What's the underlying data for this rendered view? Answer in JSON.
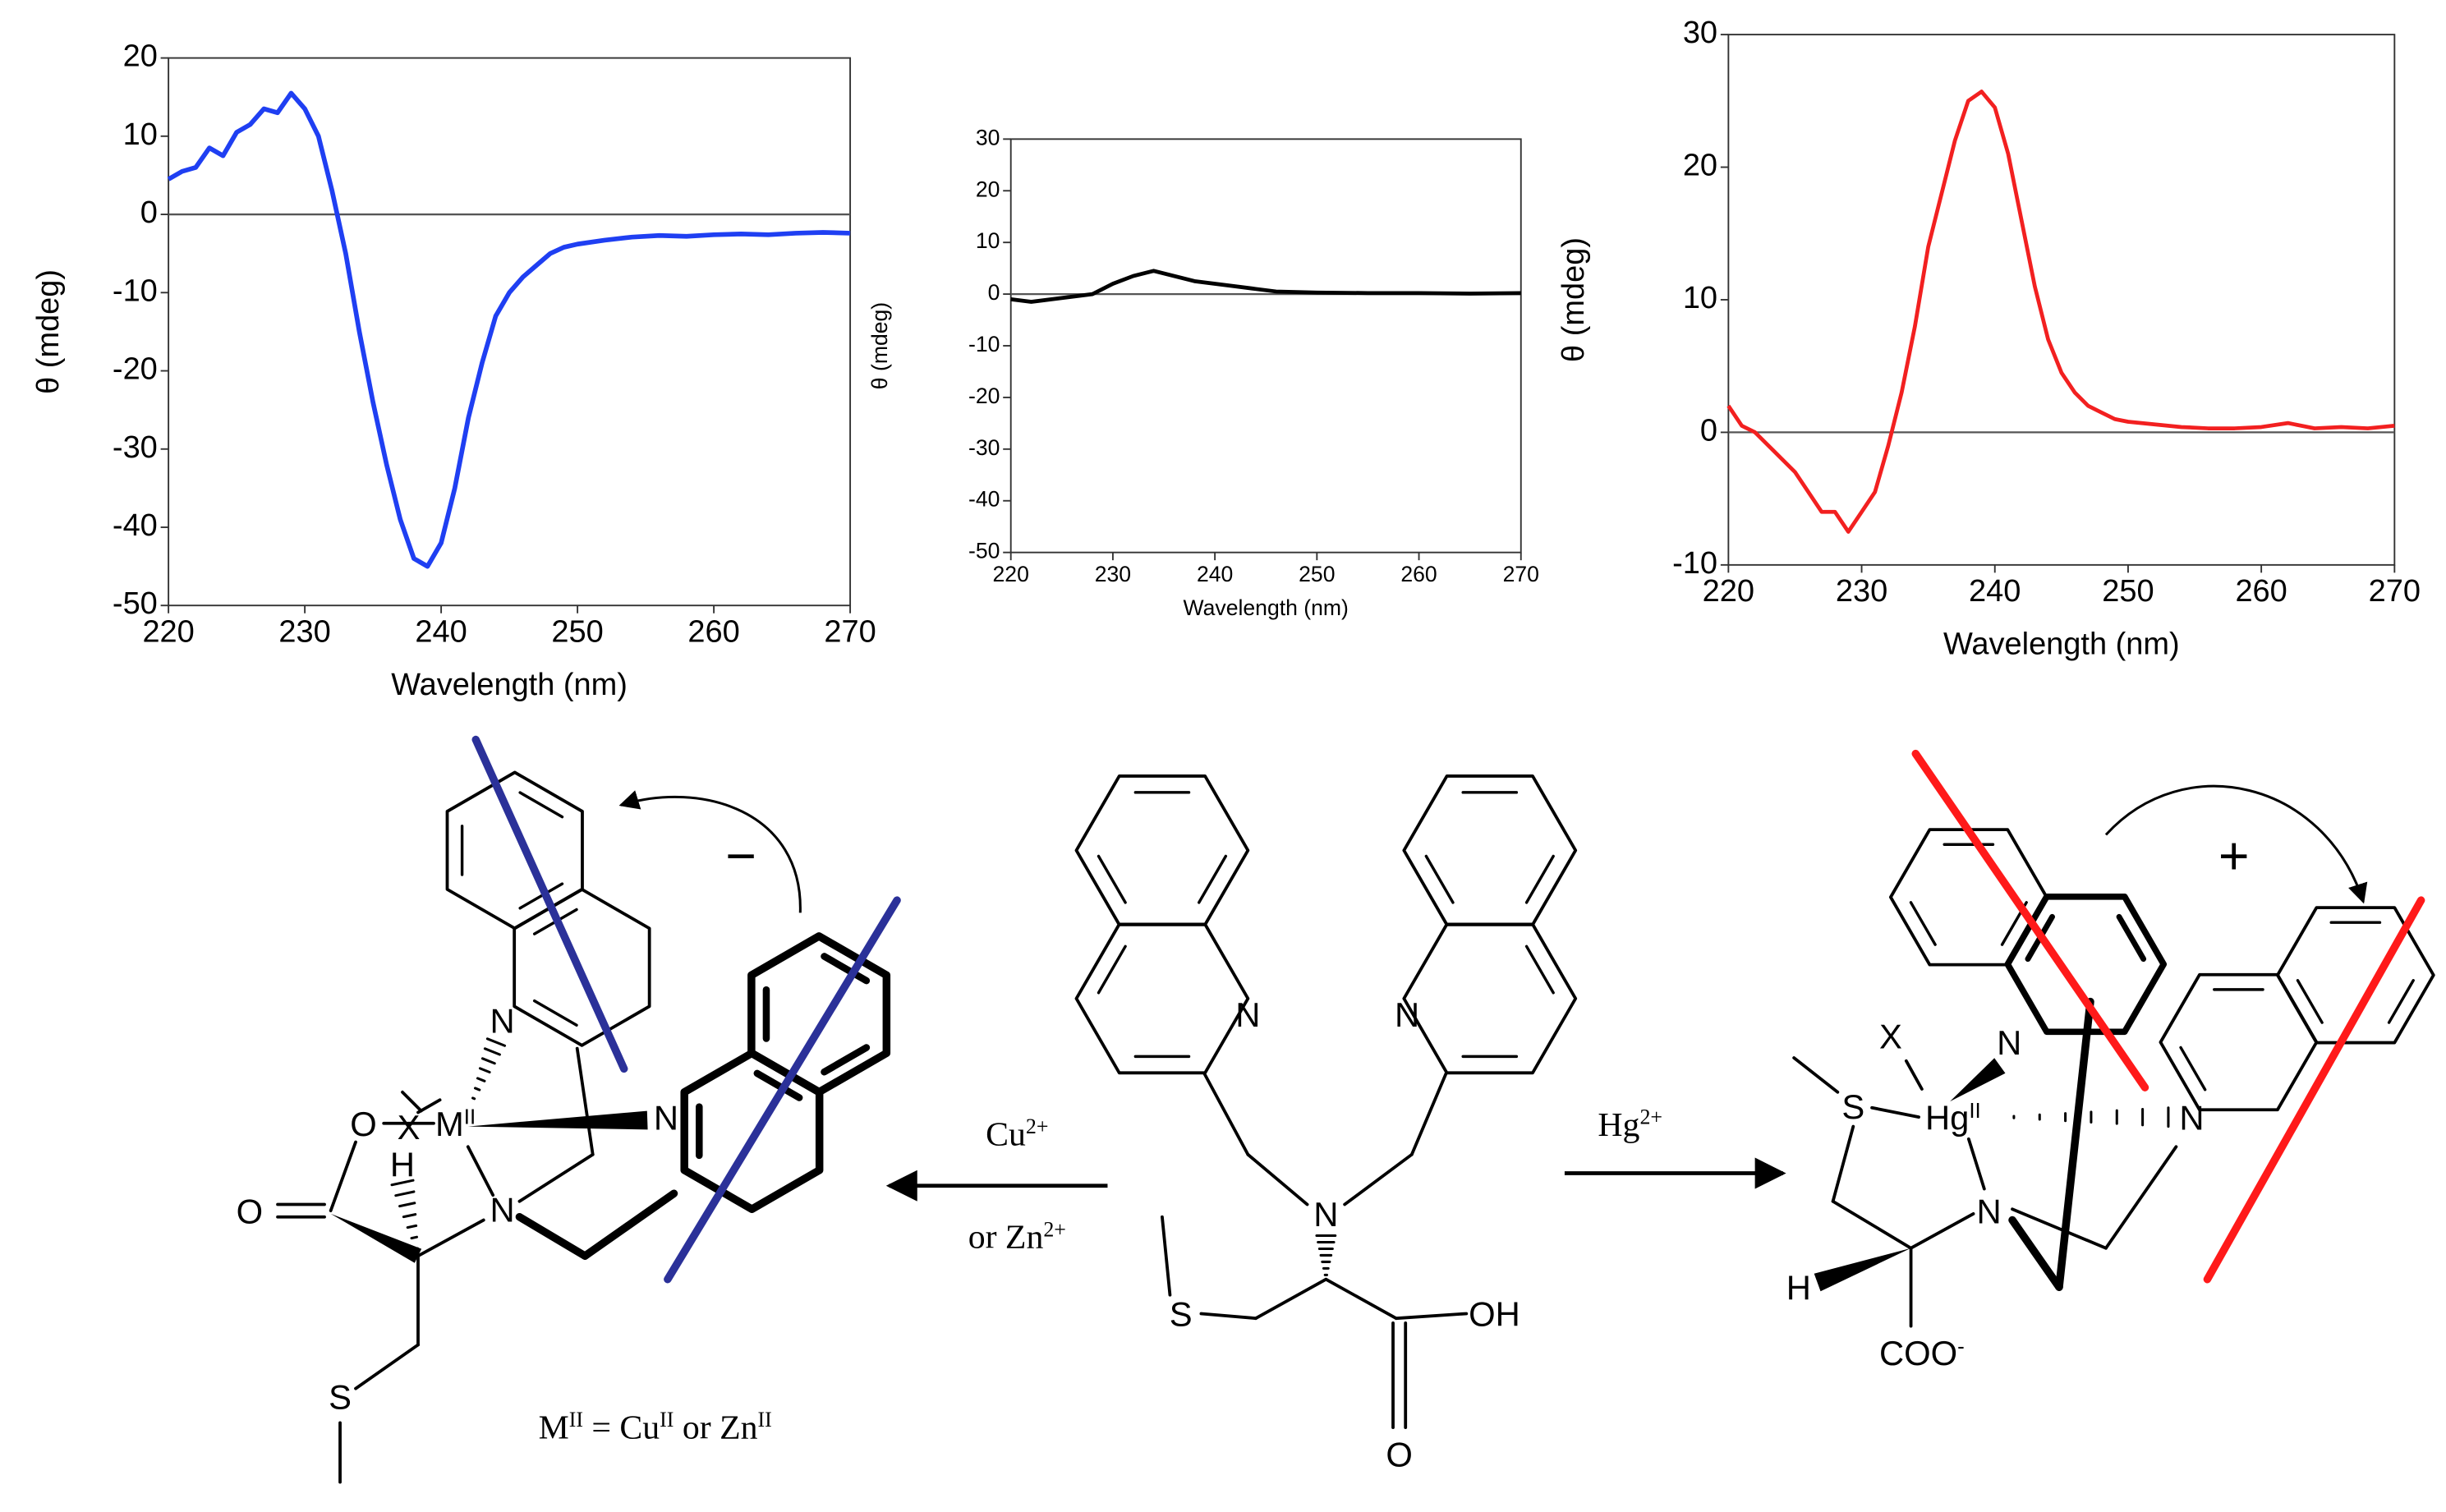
{
  "chart_data": [
    {
      "type": "line",
      "x_label": "Wavelength (nm)",
      "y_label": "θ (mdeg)",
      "xlim": [
        220,
        270
      ],
      "xticks": [
        220,
        230,
        240,
        250,
        260,
        270
      ],
      "ylim": [
        -50,
        20
      ],
      "yticks": [
        -50,
        -40,
        -30,
        -20,
        -10,
        0,
        10,
        20
      ],
      "hlines": [
        0
      ],
      "color": "#1f3ff2",
      "x": [
        220,
        221,
        222,
        223,
        224,
        225,
        226,
        227,
        228,
        229,
        230,
        231,
        232,
        233,
        234,
        235,
        236,
        237,
        238,
        239,
        240,
        241,
        242,
        243,
        244,
        245,
        246,
        247,
        248,
        249,
        250,
        252,
        254,
        256,
        258,
        260,
        262,
        264,
        266,
        268,
        270
      ],
      "values": [
        4.5,
        5.5,
        6,
        8.5,
        7.5,
        10.5,
        11.5,
        13.5,
        13,
        15.5,
        13.5,
        10,
        3,
        -5,
        -15,
        -24,
        -32,
        -39,
        -44,
        -45,
        -42,
        -35,
        -26,
        -19,
        -13,
        -10,
        -8,
        -6.5,
        -5,
        -4.2,
        -3.8,
        -3.3,
        -2.9,
        -2.7,
        -2.8,
        -2.6,
        -2.5,
        -2.6,
        -2.4,
        -2.3,
        -2.4
      ]
    },
    {
      "type": "line",
      "x_label": "Wavelength (nm)",
      "y_label": "θ (mdeg)",
      "xlim": [
        220,
        270
      ],
      "xticks": [
        220,
        230,
        240,
        250,
        260,
        270
      ],
      "ylim": [
        -50,
        30
      ],
      "yticks": [
        -50,
        -40,
        -30,
        -20,
        -10,
        0,
        10,
        20,
        30
      ],
      "hlines": [
        0
      ],
      "color": "#000000",
      "x": [
        220,
        222,
        224,
        226,
        228,
        230,
        232,
        234,
        236,
        238,
        240,
        242,
        244,
        246,
        250,
        255,
        260,
        265,
        270
      ],
      "values": [
        -1,
        -1.5,
        -1,
        -0.5,
        0,
        2,
        3.5,
        4.5,
        3.5,
        2.5,
        2,
        1.5,
        1,
        0.5,
        0.3,
        0.2,
        0.2,
        0.1,
        0.2
      ]
    },
    {
      "type": "line",
      "x_label": "Wavelength (nm)",
      "y_label": "θ (mdeg)",
      "xlim": [
        220,
        270
      ],
      "xticks": [
        220,
        230,
        240,
        250,
        260,
        270
      ],
      "ylim": [
        -10,
        30
      ],
      "yticks": [
        -10,
        0,
        10,
        20,
        30
      ],
      "hlines": [
        0
      ],
      "color": "#f22020",
      "x": [
        220,
        221,
        222,
        223,
        224,
        225,
        226,
        227,
        228,
        229,
        230,
        231,
        232,
        233,
        234,
        235,
        236,
        237,
        238,
        239,
        240,
        241,
        242,
        243,
        244,
        245,
        246,
        247,
        248,
        249,
        250,
        252,
        254,
        256,
        258,
        260,
        262,
        264,
        266,
        268,
        270
      ],
      "values": [
        2,
        0.5,
        0,
        -1,
        -2,
        -3,
        -4.5,
        -6,
        -6,
        -7.5,
        -6,
        -4.5,
        -1,
        3,
        8,
        14,
        18,
        22,
        25,
        25.7,
        24.5,
        21,
        16,
        11,
        7,
        4.5,
        3,
        2,
        1.5,
        1,
        0.8,
        0.6,
        0.4,
        0.3,
        0.3,
        0.4,
        0.7,
        0.3,
        0.4,
        0.3,
        0.5
      ]
    }
  ],
  "scheme": {
    "labels": [
      {
        "parts": [
          {
            "text": "X"
          }
        ]
      },
      {
        "parts": [
          {
            "text": "O"
          }
        ]
      },
      {
        "parts": [
          {
            "text": "M"
          },
          {
            "sup": "II"
          }
        ]
      },
      {
        "parts": [
          {
            "text": "N"
          }
        ]
      },
      {
        "parts": [
          {
            "text": "N"
          }
        ]
      },
      {
        "parts": [
          {
            "text": "H"
          }
        ]
      },
      {
        "parts": [
          {
            "text": "N"
          }
        ]
      },
      {
        "parts": [
          {
            "text": "O"
          }
        ]
      },
      {
        "parts": [
          {
            "text": "S"
          }
        ]
      },
      {
        "parts": [
          {
            "text": "−"
          }
        ]
      },
      {
        "parts": [
          {
            "text": "M"
          },
          {
            "sup": "II"
          },
          {
            "text": " = Cu"
          },
          {
            "sup": "II"
          },
          {
            "text": " or Zn"
          },
          {
            "sup": "II"
          }
        ]
      },
      {
        "parts": [
          {
            "text": "N"
          }
        ]
      },
      {
        "parts": [
          {
            "text": "N"
          }
        ]
      },
      {
        "parts": [
          {
            "text": "N"
          }
        ]
      },
      {
        "parts": [
          {
            "text": "S"
          }
        ]
      },
      {
        "parts": [
          {
            "text": "OH"
          }
        ]
      },
      {
        "parts": [
          {
            "text": "O"
          }
        ]
      },
      {
        "parts": [
          {
            "text": "Cu"
          },
          {
            "sup": "2+"
          }
        ]
      },
      {
        "parts": [
          {
            "text": "or Zn"
          },
          {
            "sup": "2+"
          }
        ]
      },
      {
        "parts": [
          {
            "text": "Hg"
          },
          {
            "sup": "2+"
          }
        ]
      },
      {
        "parts": [
          {
            "text": "S"
          }
        ]
      },
      {
        "parts": [
          {
            "text": "X"
          }
        ]
      },
      {
        "parts": [
          {
            "text": "Hg"
          },
          {
            "sup": "II"
          }
        ]
      },
      {
        "parts": [
          {
            "text": "N"
          }
        ]
      },
      {
        "parts": [
          {
            "text": "N"
          }
        ]
      },
      {
        "parts": [
          {
            "text": "N"
          }
        ]
      },
      {
        "parts": [
          {
            "text": "H"
          }
        ]
      },
      {
        "parts": [
          {
            "text": "COO"
          },
          {
            "sup": "-"
          }
        ]
      },
      {
        "parts": [
          {
            "text": "+"
          }
        ]
      }
    ]
  }
}
